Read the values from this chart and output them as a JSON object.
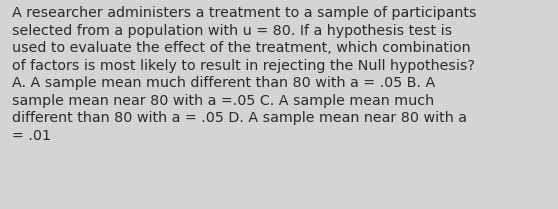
{
  "background_color": "#d4d4d4",
  "text_color": "#2b2b2b",
  "font_size": 10.3,
  "text": "A researcher administers a treatment to a sample of participants\nselected from a population with u = 80. If a hypothesis test is\nused to evaluate the effect of the treatment, which combination\nof factors is most likely to result in rejecting the Null hypothesis?\nA. A sample mean much different than 80 with a = .05 B. A\nsample mean near 80 with a =.05 C. A sample mean much\ndifferent than 80 with a = .05 D. A sample mean near 80 with a\n= .01",
  "fig_width": 5.58,
  "fig_height": 2.09,
  "dpi": 100
}
